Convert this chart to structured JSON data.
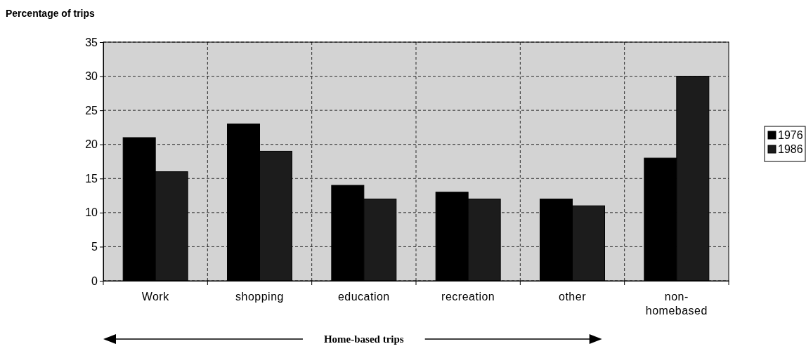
{
  "chart_data": {
    "type": "bar",
    "ylabel": "Percentage of trips",
    "categories": [
      "Work",
      "shopping",
      "education",
      "recreation",
      "other",
      "non-homebased"
    ],
    "series": [
      {
        "name": "1976",
        "color": "#000000",
        "values": [
          21,
          23,
          14,
          13,
          12,
          18
        ]
      },
      {
        "name": "1986",
        "color": "#1c1c1c",
        "values": [
          16,
          19,
          12,
          12,
          11,
          30
        ]
      }
    ],
    "ylim": [
      0,
      35
    ],
    "yticks": [
      0,
      5,
      10,
      15,
      20,
      25,
      30,
      35
    ],
    "grid": true,
    "legend": "right",
    "annotations": [
      "Home-based trips"
    ]
  }
}
